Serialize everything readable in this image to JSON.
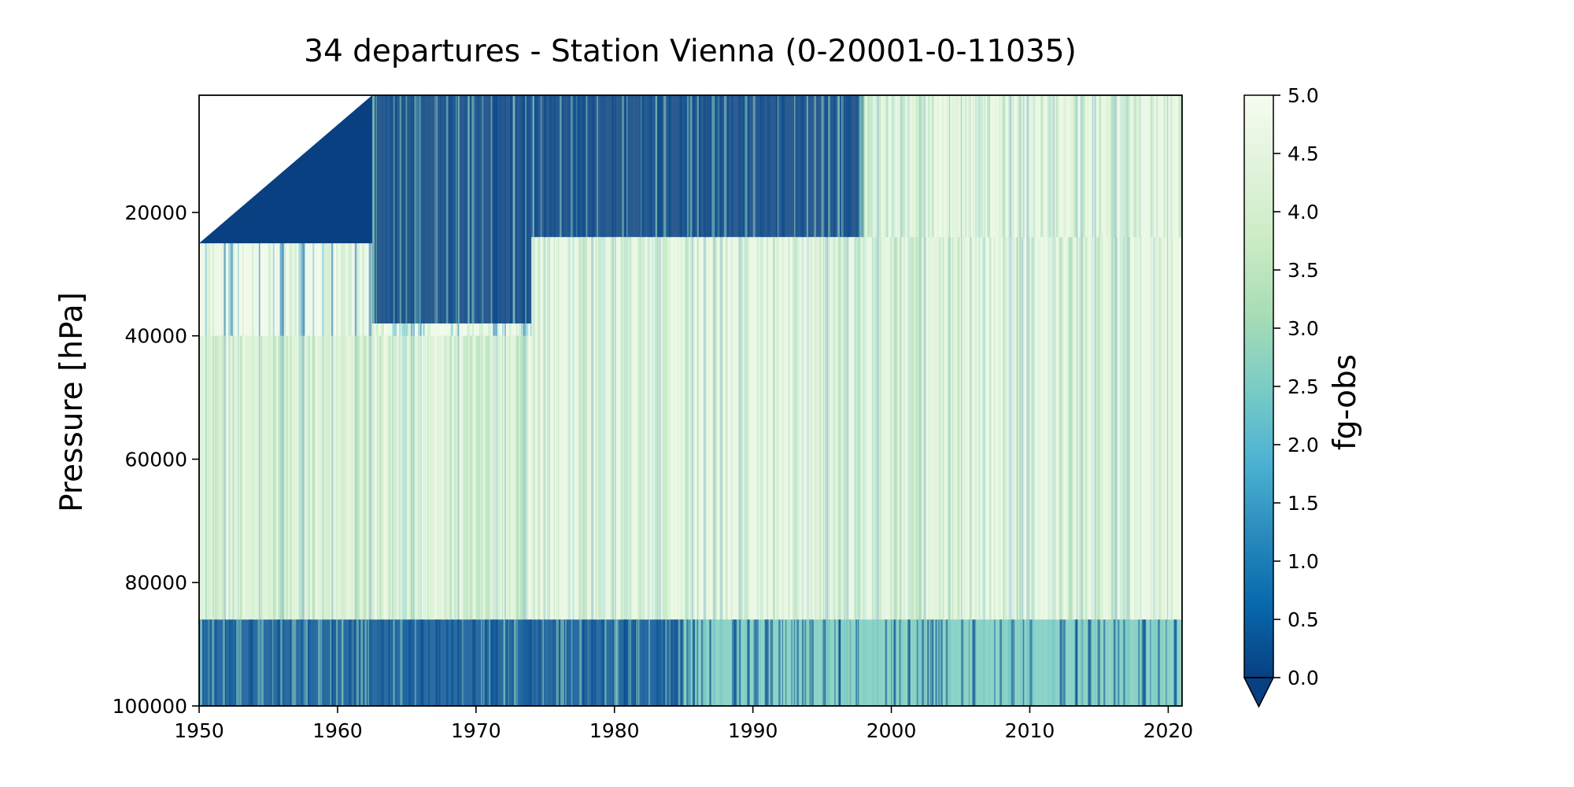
{
  "chart_data": {
    "type": "heatmap",
    "title": "34 departures - Station Vienna (0-20001-0-11035)",
    "xlabel": "",
    "ylabel": "Pressure [hPa]",
    "colorbar_label": "fg-obs",
    "xlim": [
      1950,
      2021
    ],
    "ylim": [
      100000,
      1000
    ],
    "y_inverted": true,
    "x_ticks": [
      1950,
      1960,
      1970,
      1980,
      1990,
      2000,
      2010,
      2020
    ],
    "x_tick_labels": [
      "1950",
      "1960",
      "1970",
      "1980",
      "1990",
      "2000",
      "2010",
      "2020"
    ],
    "y_ticks": [
      20000,
      40000,
      60000,
      80000,
      100000
    ],
    "y_tick_labels": [
      "20000",
      "40000",
      "60000",
      "80000",
      "100000"
    ],
    "colorbar_range": [
      0.0,
      5.0
    ],
    "colorbar_extend": "min",
    "colorbar_ticks": [
      0.0,
      0.5,
      1.0,
      1.5,
      2.0,
      2.5,
      3.0,
      3.5,
      4.0,
      4.5,
      5.0
    ],
    "colorbar_tick_labels": [
      "0.0",
      "0.5",
      "1.0",
      "1.5",
      "2.0",
      "2.5",
      "3.0",
      "3.5",
      "4.0",
      "4.5",
      "5.0"
    ],
    "colormap": "GnBu_r",
    "colormap_stops": [
      "#084081",
      "#0868ac",
      "#2b8cbe",
      "#4eb3d3",
      "#7bccc4",
      "#a8ddb5",
      "#ccebc5",
      "#e0f3db",
      "#f7fcf0"
    ],
    "regions": [
      {
        "x": [
          1950,
          1962.5
        ],
        "p_top": 1000,
        "p_bottom": 25000,
        "shape": "triangle",
        "value": null
      },
      {
        "x": [
          1962.5,
          1974
        ],
        "p_top": 1000,
        "p_bottom": 38000,
        "value": 0.0
      },
      {
        "x": [
          1974,
          1998
        ],
        "p_top": 1000,
        "p_bottom": 24000,
        "value": 0.0
      },
      {
        "x": [
          1974,
          2021
        ],
        "p_top": 24000,
        "p_bottom": 86000,
        "value": 4.5
      },
      {
        "x": [
          1998,
          2021
        ],
        "p_top": 1000,
        "p_bottom": 24000,
        "value": 4.5
      },
      {
        "x": [
          1950,
          1974
        ],
        "p_top": 40000,
        "p_bottom": 86000,
        "value": 4.0
      },
      {
        "x": [
          1950,
          1985
        ],
        "p_top": 86000,
        "p_bottom": 100000,
        "value": 0.3
      },
      {
        "x": [
          1985,
          2021
        ],
        "p_top": 86000,
        "p_bottom": 100000,
        "value": 2.5
      }
    ]
  }
}
